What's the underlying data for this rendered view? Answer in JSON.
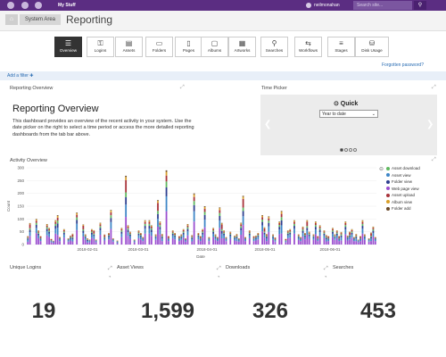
{
  "topbar": {
    "mystuff_label": "My Stuff",
    "username": "neilmonahan",
    "search_placeholder": "Search site...",
    "search_icon": "search-icon",
    "accent": "#5b2d82"
  },
  "breadcrumb": {
    "home_icon": "home-icon",
    "system_area": "System Area",
    "title": "Reporting"
  },
  "tabs": [
    {
      "label": "Overview",
      "icon": "☰",
      "active": true
    },
    {
      "label": "Logins",
      "icon": "⚿"
    },
    {
      "label": "Assets",
      "icon": "▤"
    },
    {
      "label": "Folders",
      "icon": "▭"
    },
    {
      "label": "Pages",
      "icon": "▯"
    },
    {
      "label": "Albums",
      "icon": "▢"
    },
    {
      "label": "Artworks",
      "icon": "▦"
    },
    {
      "label": "Searches",
      "icon": "⚲"
    },
    {
      "label": "Workflows",
      "icon": "⇆"
    },
    {
      "label": "Stages",
      "icon": "≡"
    },
    {
      "label": "Disk Usage",
      "icon": "⛁"
    }
  ],
  "filter": {
    "add_filter": "Add a filter ✚",
    "forgot_password": "Forgotten password?"
  },
  "overview": {
    "section_title": "Reporting Overview",
    "heading": "Reporting Overview",
    "text": "This dashboard provides an overview of the recent activity in your system. Use the date picker on the right to select a time period or access the more detailed reporting dashboards from the tab bar above."
  },
  "time_picker": {
    "section_title": "Time Picker",
    "quick_label": "⊙ Quick",
    "selected": "Year to date"
  },
  "activity": {
    "section_title": "Activity Overview"
  },
  "chart_data": {
    "type": "bar",
    "ylabel": "Count",
    "xlabel": "Date",
    "ylim": [
      0,
      300
    ],
    "y_ticks": [
      "300",
      "250",
      "200",
      "150",
      "100",
      "50",
      "0"
    ],
    "x_ticks": [
      "2018-02-01",
      "2018-03-01",
      "2018-04-01",
      "2018-05-01",
      "2018-06-01"
    ],
    "legend": [
      {
        "name": "Asset download",
        "color": "#5fb85f"
      },
      {
        "name": "Asset view",
        "color": "#3e86c7"
      },
      {
        "name": "Folder view",
        "color": "#2e3f8f"
      },
      {
        "name": "Web page view",
        "color": "#9b4fd0"
      },
      {
        "name": "Asset upload",
        "color": "#a8323a"
      },
      {
        "name": "Album view",
        "color": "#d9a02a"
      },
      {
        "name": "Folder add",
        "color": "#6a4a2a"
      }
    ],
    "stacked_totals": [
      40,
      75,
      0,
      0,
      100,
      55,
      30,
      0,
      0,
      80,
      65,
      20,
      15,
      95,
      140,
      30,
      0,
      60,
      0,
      25,
      35,
      45,
      0,
      125,
      0,
      0,
      70,
      40,
      30,
      20,
      60,
      50,
      20,
      0,
      85,
      0,
      35,
      0,
      45,
      135,
      25,
      0,
      20,
      0,
      65,
      0,
      240,
      75,
      50,
      0,
      20,
      0,
      55,
      45,
      30,
      95,
      0,
      95,
      75,
      0,
      40,
      155,
      90,
      50,
      0,
      290,
      30,
      0,
      55,
      45,
      0,
      30,
      40,
      60,
      25,
      80,
      0,
      45,
      200,
      0,
      45,
      30,
      60,
      150,
      0,
      30,
      0,
      65,
      40,
      30,
      145,
      90,
      55,
      30,
      0,
      50,
      0,
      35,
      50,
      25,
      85,
      170,
      30,
      0,
      55,
      0,
      30,
      35,
      45,
      0,
      115,
      60,
      50,
      110,
      0,
      40,
      25,
      0,
      90,
      160,
      0,
      20,
      55,
      60,
      0,
      95,
      0,
      40,
      30,
      70,
      45,
      85,
      50,
      0,
      40,
      90,
      30,
      75,
      0,
      55,
      45,
      30,
      0,
      65,
      40,
      55,
      30,
      60,
      0,
      90,
      35,
      45,
      60,
      30,
      50,
      20,
      30,
      95,
      40,
      0,
      25,
      50,
      70,
      30
    ],
    "breakdown_fraction": {
      "Web page view": 0.45,
      "Asset view": 0.2,
      "Folder view": 0.12,
      "Asset download": 0.08,
      "Asset upload": 0.08,
      "Album view": 0.05,
      "Folder add": 0.02
    }
  },
  "stats": [
    {
      "title": "Unique Logins",
      "value": "19"
    },
    {
      "title": "Asset Views",
      "value": "1,599"
    },
    {
      "title": "Downloads",
      "value": "326"
    },
    {
      "title": "Searches",
      "value": "453"
    }
  ]
}
